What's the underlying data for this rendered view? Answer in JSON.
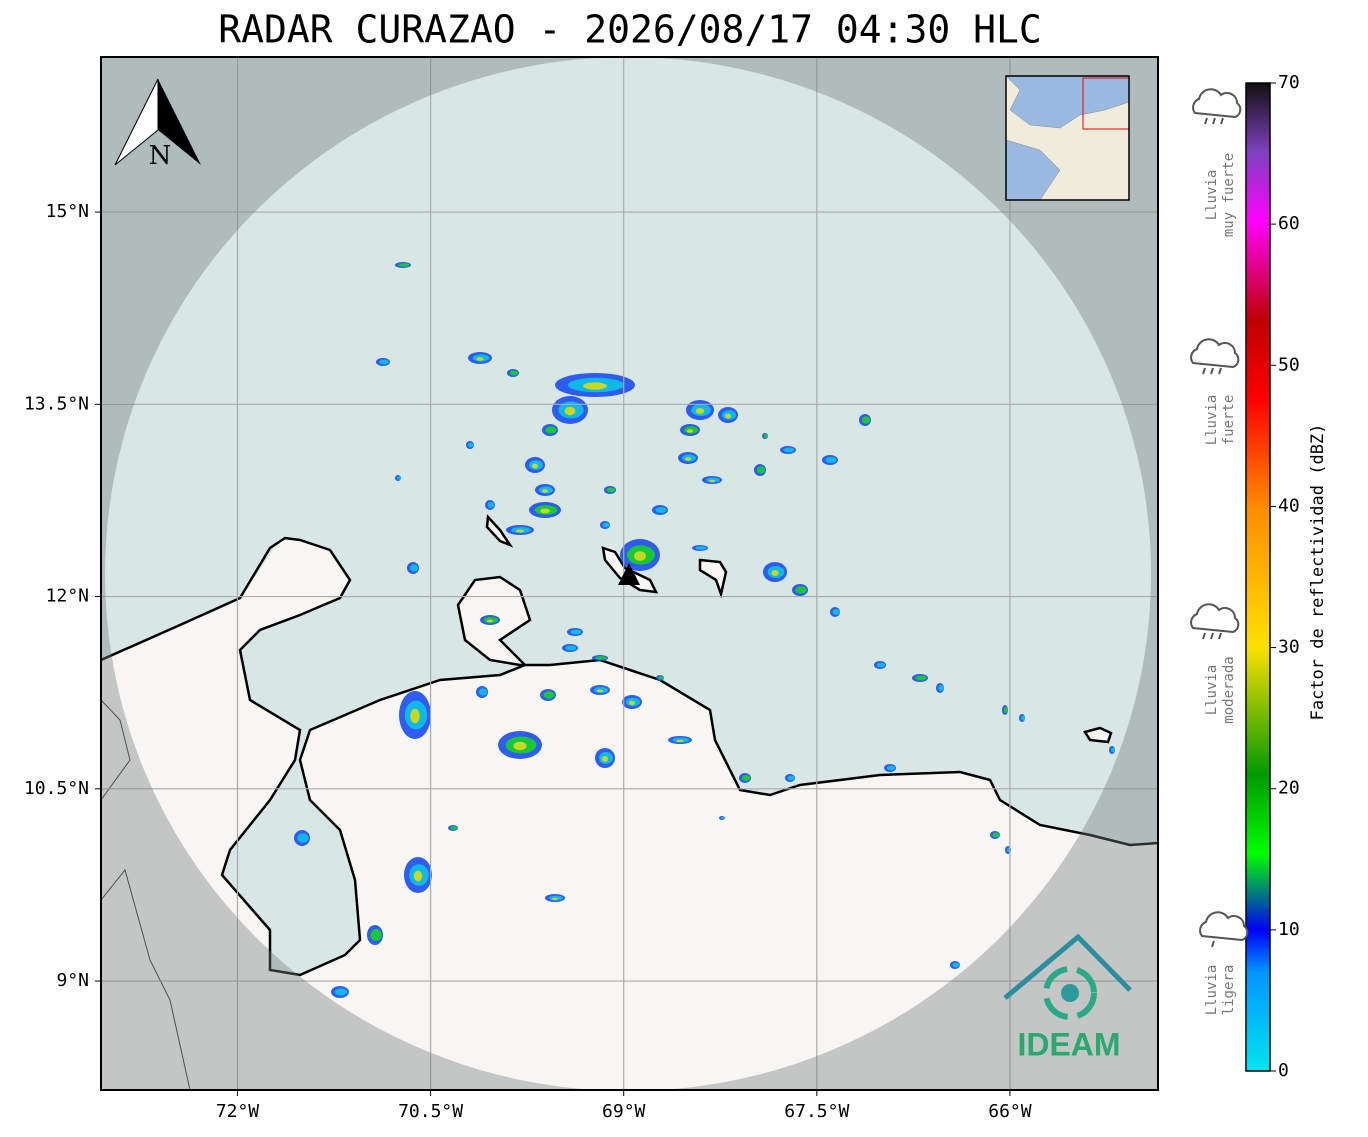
{
  "title": "RADAR CURAZAO - 2026/08/17 04:30 HLC",
  "map": {
    "xlim": [
      -73.06,
      -64.85
    ],
    "ylim": [
      8.15,
      16.21
    ],
    "lat_ticks": [
      {
        "value": 15,
        "label": "15°N"
      },
      {
        "value": 13.5,
        "label": "13.5°N"
      },
      {
        "value": 12,
        "label": "12°N"
      },
      {
        "value": 10.5,
        "label": "10.5°N"
      },
      {
        "value": 9,
        "label": "9°N"
      }
    ],
    "lon_ticks": [
      {
        "value": -72,
        "label": "72°W"
      },
      {
        "value": -70.5,
        "label": "70.5°W"
      },
      {
        "value": -69,
        "label": "69°W"
      },
      {
        "value": -67.5,
        "label": "67.5°W"
      },
      {
        "value": -66,
        "label": "66°W"
      }
    ],
    "north_label": "N",
    "logo_text": "IDEAM"
  },
  "colorbar": {
    "label": "Factor de reflectividad (dBZ)",
    "lim": [
      0,
      70
    ],
    "ticks": [
      0,
      10,
      20,
      30,
      40,
      50,
      60,
      70
    ]
  },
  "rain_legend": [
    [
      "Lluvia",
      "muy fuerte"
    ],
    [
      "Lluvia",
      "fuerte"
    ],
    [
      "Lluvia",
      "moderada"
    ],
    [
      "Lluvia",
      "ligera"
    ]
  ]
}
